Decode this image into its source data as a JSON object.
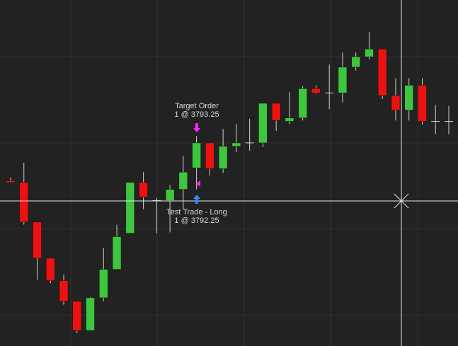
{
  "chart_data": {
    "type": "candlestick",
    "open": [
      3792.56,
      3792.54,
      3792.08,
      3791.66,
      3791.4,
      3791.16,
      3790.82,
      3791.2,
      3791.53,
      3791.95,
      3792.54,
      3792.33,
      3792.33,
      3792.46,
      3792.71,
      3793.0,
      3792.7,
      3792.96,
      3793.0,
      3793.0,
      3793.46,
      3793.25,
      3793.29,
      3793.63,
      3793.58,
      3793.58,
      3793.88,
      3794.0,
      3794.09,
      3793.55,
      3793.38,
      3793.67,
      3793.25,
      3793.25
    ],
    "high": [
      3792.6,
      3792.77,
      3792.08,
      3791.66,
      3791.47,
      3791.16,
      3791.21,
      3791.78,
      3792.05,
      3792.54,
      3792.66,
      3792.36,
      3792.51,
      3792.85,
      3793.08,
      3793.0,
      3793.16,
      3793.22,
      3793.28,
      3793.46,
      3793.46,
      3793.59,
      3793.66,
      3793.67,
      3793.91,
      3794.05,
      3794.05,
      3794.29,
      3794.09,
      3793.75,
      3793.75,
      3793.75,
      3793.44,
      3793.43
    ],
    "low": [
      3792.54,
      3792.05,
      3791.41,
      3791.37,
      3791.12,
      3790.79,
      3790.82,
      3791.16,
      3791.53,
      3791.95,
      3792.23,
      3791.95,
      3791.96,
      3792.23,
      3792.46,
      3792.62,
      3792.65,
      3792.89,
      3792.91,
      3792.95,
      3793.14,
      3793.22,
      3793.26,
      3793.57,
      3793.39,
      3793.47,
      3793.84,
      3793.97,
      3793.51,
      3793.26,
      3793.26,
      3793.21,
      3793.1,
      3793.1
    ],
    "close": [
      3792.54,
      3792.08,
      3791.66,
      3791.4,
      3791.16,
      3790.82,
      3791.2,
      3791.53,
      3791.91,
      3792.54,
      3792.37,
      3792.33,
      3792.46,
      3792.66,
      3793.0,
      3792.7,
      3792.96,
      3793.0,
      3793.0,
      3793.46,
      3793.26,
      3793.29,
      3793.63,
      3793.58,
      3793.58,
      3793.88,
      3794.0,
      3794.09,
      3793.55,
      3793.38,
      3793.67,
      3793.25,
      3793.25,
      3793.25
    ],
    "up_color": "#3ec63e",
    "down_color": "#ee1111",
    "wick_color": "#d0d0d0",
    "ylim": [
      3790.64,
      3794.66
    ],
    "yticks": [
      3791,
      3792,
      3793,
      3794
    ],
    "grid": true,
    "annotations": [
      {
        "title": "Target Order",
        "text": "1 @ 3793.25",
        "color": "#ff22ff"
      },
      {
        "title": "Test Trade - Long",
        "text": "1 @ 3792.25",
        "color": "#2a8cff"
      }
    ]
  }
}
